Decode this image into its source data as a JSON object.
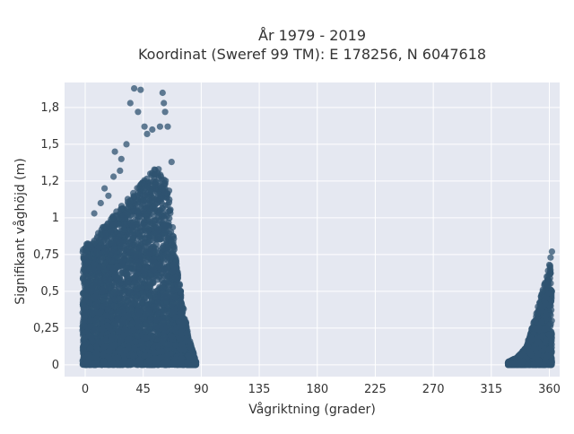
{
  "chart_data": {
    "type": "scatter",
    "title_line1": "År 1979 - 2019",
    "title_line2": "Koordinat (Sweref 99 TM): E 178256, N 6047618",
    "xlabel": "Vågriktning (grader)",
    "ylabel": "Signifikant våghöjd (m)",
    "xlim": [
      -16,
      368
    ],
    "ylim": [
      -0.08,
      1.92
    ],
    "x_ticks": [
      0,
      45,
      90,
      135,
      180,
      225,
      270,
      315,
      360
    ],
    "x_tick_labels": [
      "0",
      "45",
      "90",
      "135",
      "180",
      "225",
      "270",
      "315",
      "360"
    ],
    "y_ticks": [
      0,
      0.25,
      0.5,
      0.75,
      1,
      1.25,
      1.5,
      1.75
    ],
    "y_tick_labels": [
      "0",
      "0,25",
      "0,5",
      "0,75",
      "1",
      "1,2",
      "1,5",
      "1,8"
    ],
    "grid": true,
    "marker_color": "#2f5370",
    "background_color": "#e5e8f1",
    "point_clusters": [
      {
        "name": "",
        "x_range": [
          -2,
          86
        ],
        "peak_x": 55,
        "envelope": [
          [
            -2,
            0.8
          ],
          [
            5,
            0.85
          ],
          [
            15,
            0.95
          ],
          [
            25,
            1.05
          ],
          [
            35,
            1.15
          ],
          [
            45,
            1.25
          ],
          [
            50,
            1.3
          ],
          [
            55,
            1.35
          ],
          [
            60,
            1.3
          ],
          [
            65,
            1.2
          ],
          [
            70,
            0.75
          ],
          [
            75,
            0.45
          ],
          [
            80,
            0.2
          ],
          [
            86,
            0.02
          ]
        ],
        "outliers": [
          [
            7,
            1.03
          ],
          [
            18,
            1.15
          ],
          [
            22,
            1.28
          ],
          [
            23,
            1.45
          ],
          [
            28,
            1.4
          ],
          [
            32,
            1.5
          ],
          [
            35,
            1.78
          ],
          [
            38,
            1.88
          ],
          [
            41,
            1.72
          ],
          [
            43,
            1.87
          ],
          [
            46,
            1.62
          ],
          [
            48,
            1.57
          ],
          [
            52,
            1.6
          ],
          [
            58,
            1.62
          ],
          [
            60,
            1.85
          ],
          [
            61,
            1.78
          ],
          [
            62,
            1.72
          ],
          [
            64,
            1.62
          ],
          [
            67,
            1.38
          ],
          [
            12,
            1.1
          ],
          [
            15,
            1.2
          ],
          [
            27,
            1.32
          ]
        ]
      },
      {
        "name": "",
        "x_range": [
          328,
          362
        ],
        "peak_x": 361,
        "envelope": [
          [
            328,
            0.02
          ],
          [
            335,
            0.05
          ],
          [
            342,
            0.12
          ],
          [
            348,
            0.3
          ],
          [
            352,
            0.42
          ],
          [
            356,
            0.55
          ],
          [
            359,
            0.62
          ],
          [
            361,
            0.7
          ],
          [
            362,
            0.5
          ]
        ],
        "outliers": [
          [
            357,
            0.55
          ],
          [
            359,
            0.64
          ],
          [
            360,
            0.68
          ],
          [
            361,
            0.73
          ],
          [
            362,
            0.77
          ],
          [
            355,
            0.5
          ],
          [
            358,
            0.6
          ]
        ]
      }
    ]
  }
}
